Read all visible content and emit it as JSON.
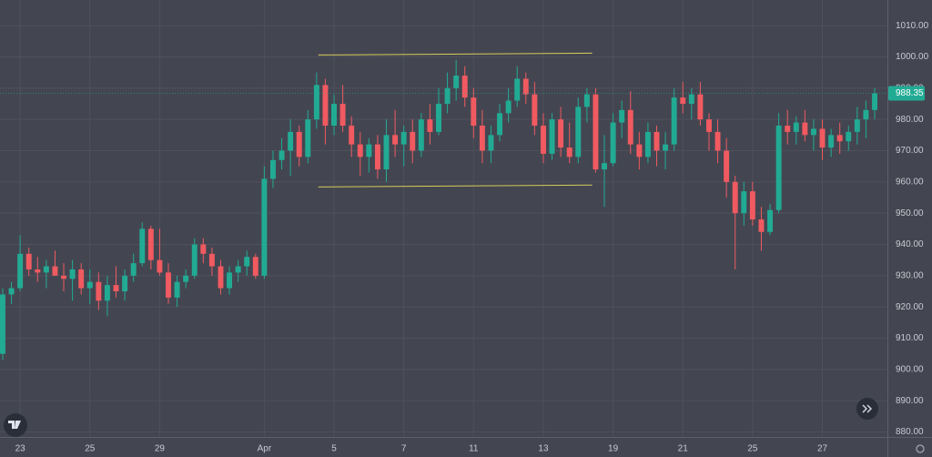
{
  "chart_data": {
    "type": "candlestick",
    "up_color": "#22ab94",
    "down_color": "#f05a60",
    "grid": true,
    "ylim": [
      878.4,
      1018.2
    ],
    "yticks": [
      {
        "value": 880,
        "label": "880.00"
      },
      {
        "value": 890,
        "label": "890.00"
      },
      {
        "value": 900,
        "label": "900.00"
      },
      {
        "value": 910,
        "label": "910.00"
      },
      {
        "value": 920,
        "label": "920.00"
      },
      {
        "value": 930,
        "label": "930.00"
      },
      {
        "value": 940,
        "label": "940.00"
      },
      {
        "value": 950,
        "label": "950.00"
      },
      {
        "value": 960,
        "label": "960.00"
      },
      {
        "value": 970,
        "label": "970.00"
      },
      {
        "value": 980,
        "label": "980.00"
      },
      {
        "value": 990,
        "label": "990.00"
      },
      {
        "value": 1000,
        "label": "1000.00"
      },
      {
        "value": 1010,
        "label": "1010.00"
      }
    ],
    "xlim": [
      -0.31,
      101.46
    ],
    "xticks": [
      {
        "value": 2,
        "label": "23"
      },
      {
        "value": 10,
        "label": "25"
      },
      {
        "value": 18,
        "label": "29"
      },
      {
        "value": 30,
        "label": "Apr"
      },
      {
        "value": 38,
        "label": "5"
      },
      {
        "value": 46,
        "label": "7"
      },
      {
        "value": 54,
        "label": "11"
      },
      {
        "value": 62,
        "label": "13"
      },
      {
        "value": 70,
        "label": "19"
      },
      {
        "value": 78,
        "label": "21"
      },
      {
        "value": 86,
        "label": "25"
      },
      {
        "value": 94,
        "label": "27"
      }
    ],
    "last_price": 988.35,
    "trendlines": [
      {
        "x": [
          36.2,
          67.6
        ],
        "y": [
          1000.6,
          1001.2
        ],
        "color": "#d8cc5a"
      },
      {
        "x": [
          36.2,
          67.6
        ],
        "y": [
          958.4,
          959.0
        ],
        "color": "#d8cc5a"
      }
    ],
    "ohlc": [
      [
        905,
        926,
        903,
        924
      ],
      [
        924,
        928,
        921,
        926
      ],
      [
        926,
        943,
        925,
        937
      ],
      [
        937,
        939,
        930,
        932
      ],
      [
        932,
        936,
        928,
        931
      ],
      [
        931,
        935,
        926,
        933
      ],
      [
        933,
        938,
        930,
        930
      ],
      [
        930,
        934,
        925,
        929
      ],
      [
        929,
        935,
        922,
        932
      ],
      [
        932,
        934,
        924,
        926
      ],
      [
        926,
        932,
        921,
        928
      ],
      [
        928,
        931,
        919,
        922
      ],
      [
        922,
        930,
        917,
        927
      ],
      [
        927,
        933,
        923,
        925
      ],
      [
        925,
        932,
        922,
        930
      ],
      [
        930,
        937,
        928,
        934
      ],
      [
        934,
        947,
        933,
        945
      ],
      [
        945,
        946,
        932,
        935
      ],
      [
        935,
        945,
        930,
        931
      ],
      [
        931,
        934,
        921,
        923
      ],
      [
        923,
        930,
        920,
        928
      ],
      [
        928,
        932,
        926,
        930
      ],
      [
        930,
        942,
        929,
        940
      ],
      [
        940,
        942,
        934,
        937
      ],
      [
        937,
        939,
        930,
        933
      ],
      [
        933,
        935,
        924,
        926
      ],
      [
        926,
        933,
        924,
        931
      ],
      [
        931,
        935,
        928,
        933
      ],
      [
        933,
        938,
        930,
        936
      ],
      [
        936,
        937,
        929,
        930
      ],
      [
        930,
        965,
        929,
        961
      ],
      [
        961,
        970,
        958,
        967
      ],
      [
        967,
        974,
        964,
        970
      ],
      [
        970,
        980,
        962,
        976
      ],
      [
        976,
        978,
        965,
        968
      ],
      [
        968,
        983,
        966,
        980
      ],
      [
        980,
        995,
        977,
        991
      ],
      [
        991,
        993,
        972,
        978
      ],
      [
        978,
        988,
        975,
        985
      ],
      [
        985,
        991,
        976,
        978
      ],
      [
        978,
        981,
        968,
        972
      ],
      [
        972,
        976,
        962,
        968
      ],
      [
        968,
        974,
        963,
        972
      ],
      [
        972,
        975,
        961,
        964
      ],
      [
        964,
        980,
        960,
        975
      ],
      [
        975,
        983,
        968,
        972
      ],
      [
        972,
        978,
        965,
        976
      ],
      [
        976,
        980,
        966,
        970
      ],
      [
        970,
        982,
        968,
        980
      ],
      [
        980,
        985,
        972,
        976
      ],
      [
        976,
        990,
        975,
        985
      ],
      [
        985,
        995,
        982,
        990
      ],
      [
        990,
        999,
        986,
        994
      ],
      [
        994,
        997,
        984,
        987
      ],
      [
        987,
        990,
        974,
        978
      ],
      [
        978,
        983,
        966,
        970
      ],
      [
        970,
        978,
        966,
        975
      ],
      [
        975,
        985,
        973,
        982
      ],
      [
        982,
        990,
        979,
        986
      ],
      [
        986,
        997,
        984,
        993
      ],
      [
        993,
        995,
        985,
        988
      ],
      [
        988,
        992,
        975,
        978
      ],
      [
        978,
        982,
        966,
        969
      ],
      [
        969,
        982,
        967,
        980
      ],
      [
        980,
        984,
        968,
        971
      ],
      [
        971,
        979,
        966,
        968
      ],
      [
        968,
        987,
        966,
        984
      ],
      [
        984,
        990,
        979,
        988
      ],
      [
        988,
        990,
        963,
        964
      ],
      [
        964,
        975,
        952,
        966
      ],
      [
        966,
        982,
        965,
        979
      ],
      [
        979,
        986,
        974,
        983
      ],
      [
        983,
        989,
        969,
        972
      ],
      [
        972,
        976,
        964,
        968
      ],
      [
        968,
        979,
        966,
        976
      ],
      [
        976,
        978,
        965,
        970
      ],
      [
        970,
        976,
        964,
        972
      ],
      [
        972,
        990,
        970,
        987
      ],
      [
        987,
        992,
        982,
        985
      ],
      [
        985,
        990,
        980,
        988
      ],
      [
        988,
        992,
        978,
        980
      ],
      [
        980,
        982,
        970,
        976
      ],
      [
        976,
        980,
        966,
        970
      ],
      [
        970,
        974,
        955,
        960
      ],
      [
        960,
        962,
        932,
        950
      ],
      [
        950,
        960,
        946,
        957
      ],
      [
        957,
        960,
        946,
        948
      ],
      [
        948,
        952,
        938,
        944
      ],
      [
        944,
        953,
        943,
        951
      ],
      [
        951,
        982,
        950,
        978
      ],
      [
        978,
        983,
        972,
        976
      ],
      [
        976,
        981,
        972,
        979
      ],
      [
        979,
        983,
        973,
        975
      ],
      [
        975,
        980,
        970,
        977
      ],
      [
        977,
        980,
        967,
        971
      ],
      [
        971,
        977,
        968,
        975
      ],
      [
        975,
        979,
        969,
        973
      ],
      [
        973,
        978,
        970,
        976
      ],
      [
        976,
        984,
        972,
        980
      ],
      [
        980,
        986,
        974,
        983
      ],
      [
        983,
        990,
        980,
        988.35
      ]
    ]
  }
}
